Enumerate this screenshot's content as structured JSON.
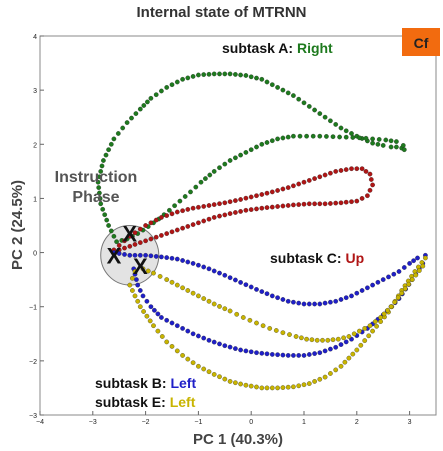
{
  "chart_data": {
    "type": "scatter",
    "title": "Internal state of MTRNN",
    "badge": "Cf",
    "xlabel": "PC 1 (40.3%)",
    "ylabel": "PC 2 (24.5%)",
    "xlim": [
      -4,
      3.5
    ],
    "ylim": [
      -3,
      4
    ],
    "xticks": [
      -4,
      -3,
      -2,
      -1,
      0,
      1,
      2,
      3
    ],
    "yticks": [
      -3,
      -2,
      -1,
      0,
      1,
      2,
      3,
      4
    ],
    "grid": false,
    "colors": {
      "A": "#1e7a1e",
      "B": "#1f1fc8",
      "C": "#b01515",
      "E": "#c8b400",
      "badge": "#f26b0f"
    },
    "annotations": {
      "instruction_line1": "Instruction",
      "instruction_line2": "Phase",
      "marker": "X"
    },
    "labels": {
      "A_prefix": "subtask A: ",
      "A_dir": "Right",
      "B_prefix": "subtask B: ",
      "B_dir": "Left",
      "C_prefix": "subtask C: ",
      "C_dir": "Up",
      "E_prefix": "subtask E: ",
      "E_dir": "Left"
    },
    "instruction_region": {
      "center": [
        -2.3,
        -0.05
      ],
      "radius_x": 0.55,
      "radius_y": 0.55
    },
    "x_markers": [
      [
        -2.3,
        0.35
      ],
      [
        -2.6,
        -0.05
      ],
      [
        -2.1,
        -0.25
      ]
    ],
    "series": [
      {
        "key": "A",
        "x": [
          -2.55,
          -2.7,
          -2.85,
          -2.9,
          -2.8,
          -2.6,
          -2.35,
          -2.1,
          -1.9,
          -1.6,
          -1.3,
          -1.0,
          -0.7,
          -0.4,
          -0.1,
          0.2,
          0.5,
          0.8,
          1.1,
          1.4,
          1.7,
          2.0,
          2.3,
          2.5,
          2.65,
          2.75,
          2.85,
          2.9,
          2.88,
          2.75,
          2.55,
          2.3,
          2.05,
          1.8,
          1.55,
          1.3,
          1.05,
          0.8,
          0.5,
          0.2,
          -0.1,
          -0.4,
          -0.7,
          -0.95,
          -1.15,
          -1.35,
          -1.55,
          -1.75,
          -1.95,
          -2.15,
          -2.35,
          -2.55
        ],
        "y": [
          0.2,
          0.5,
          0.9,
          1.3,
          1.7,
          2.1,
          2.4,
          2.65,
          2.85,
          3.05,
          3.2,
          3.28,
          3.3,
          3.3,
          3.27,
          3.2,
          3.05,
          2.9,
          2.7,
          2.5,
          2.3,
          2.15,
          2.02,
          1.98,
          1.95,
          1.95,
          1.93,
          1.9,
          1.98,
          2.05,
          2.08,
          2.1,
          2.12,
          2.13,
          2.14,
          2.15,
          2.15,
          2.15,
          2.1,
          2.0,
          1.85,
          1.7,
          1.5,
          1.3,
          1.12,
          0.95,
          0.78,
          0.62,
          0.48,
          0.35,
          0.25,
          0.2
        ]
      },
      {
        "key": "C",
        "x": [
          -2.6,
          -2.3,
          -2.0,
          -1.7,
          -1.4,
          -1.1,
          -0.8,
          -0.5,
          -0.2,
          0.1,
          0.4,
          0.7,
          1.0,
          1.3,
          1.6,
          1.9,
          2.1,
          2.25,
          2.3,
          2.2,
          2.0,
          1.7,
          1.4,
          1.1,
          0.8,
          0.5,
          0.2,
          -0.1,
          -0.4,
          -0.7,
          -1.0,
          -1.3,
          -1.6,
          -1.9,
          -2.2,
          -2.5,
          -2.6
        ],
        "y": [
          0.05,
          0.3,
          0.5,
          0.65,
          0.75,
          0.82,
          0.87,
          0.92,
          0.98,
          1.05,
          1.12,
          1.2,
          1.3,
          1.4,
          1.5,
          1.55,
          1.55,
          1.45,
          1.25,
          1.05,
          0.95,
          0.92,
          0.9,
          0.9,
          0.88,
          0.85,
          0.82,
          0.78,
          0.72,
          0.65,
          0.55,
          0.45,
          0.35,
          0.25,
          0.15,
          0.05,
          0.05
        ]
      },
      {
        "key": "B",
        "x": [
          -2.6,
          -2.3,
          -2.0,
          -1.7,
          -1.4,
          -1.1,
          -0.8,
          -0.5,
          -0.2,
          0.1,
          0.4,
          0.7,
          1.0,
          1.3,
          1.6,
          1.9,
          2.2,
          2.5,
          2.8,
          3.0,
          3.15,
          3.3,
          3.25,
          3.05,
          2.8,
          2.5,
          2.2,
          1.9,
          1.6,
          1.3,
          1.0,
          0.7,
          0.4,
          0.1,
          -0.2,
          -0.5,
          -0.8,
          -1.1,
          -1.4,
          -1.7,
          -1.9,
          -2.05,
          -2.15,
          -2.2,
          -2.25
        ],
        "y": [
          0.0,
          -0.05,
          -0.05,
          -0.08,
          -0.12,
          -0.2,
          -0.3,
          -0.42,
          -0.55,
          -0.68,
          -0.8,
          -0.9,
          -0.95,
          -0.95,
          -0.9,
          -0.8,
          -0.65,
          -0.5,
          -0.35,
          -0.2,
          -0.1,
          -0.05,
          -0.2,
          -0.5,
          -0.85,
          -1.15,
          -1.4,
          -1.6,
          -1.75,
          -1.85,
          -1.9,
          -1.9,
          -1.88,
          -1.85,
          -1.8,
          -1.72,
          -1.62,
          -1.5,
          -1.35,
          -1.2,
          -1.0,
          -0.8,
          -0.6,
          -0.4,
          -0.2
        ]
      },
      {
        "key": "E",
        "x": [
          -2.3,
          -2.1,
          -1.85,
          -1.6,
          -1.3,
          -1.0,
          -0.7,
          -0.4,
          -0.1,
          0.2,
          0.5,
          0.8,
          1.1,
          1.4,
          1.7,
          2.0,
          2.3,
          2.6,
          2.85,
          3.1,
          3.3,
          3.25,
          3.05,
          2.85,
          2.65,
          2.45,
          2.25,
          2.05,
          1.85,
          1.65,
          1.45,
          1.25,
          1.05,
          0.85,
          0.6,
          0.35,
          0.1,
          -0.15,
          -0.4,
          -0.7,
          -1.0,
          -1.3,
          -1.6,
          -1.85,
          -2.05,
          -2.2,
          -2.3
        ],
        "y": [
          -0.6,
          -1.0,
          -1.35,
          -1.65,
          -1.9,
          -2.1,
          -2.25,
          -2.38,
          -2.45,
          -2.5,
          -2.5,
          -2.48,
          -2.42,
          -2.3,
          -2.1,
          -1.8,
          -1.45,
          -1.1,
          -0.7,
          -0.35,
          -0.1,
          -0.25,
          -0.5,
          -0.75,
          -1.0,
          -1.2,
          -1.35,
          -1.45,
          -1.55,
          -1.6,
          -1.62,
          -1.62,
          -1.6,
          -1.55,
          -1.48,
          -1.4,
          -1.3,
          -1.2,
          -1.08,
          -0.95,
          -0.8,
          -0.65,
          -0.5,
          -0.38,
          -0.3,
          -0.35,
          -0.6
        ]
      }
    ]
  }
}
